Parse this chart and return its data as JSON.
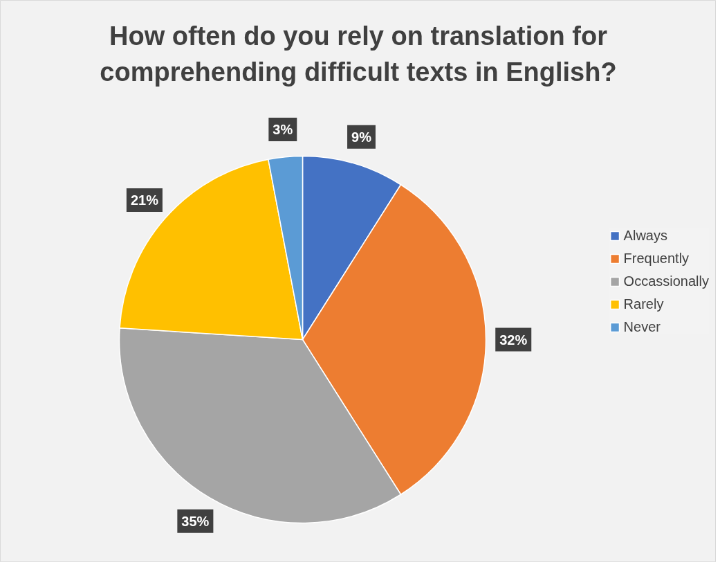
{
  "chart_data": {
    "type": "pie",
    "title": "How often do you rely on translation for comprehending difficult texts in English?",
    "categories": [
      "Always",
      "Frequently",
      "Occassionally",
      "Rarely",
      "Never"
    ],
    "values": [
      9,
      32,
      35,
      21,
      3
    ],
    "colors": [
      "#4472c4",
      "#ed7d31",
      "#a5a5a5",
      "#ffc000",
      "#5b9bd5"
    ],
    "value_labels": [
      "9%",
      "32%",
      "35%",
      "21%",
      "3%"
    ],
    "legend": "right"
  }
}
